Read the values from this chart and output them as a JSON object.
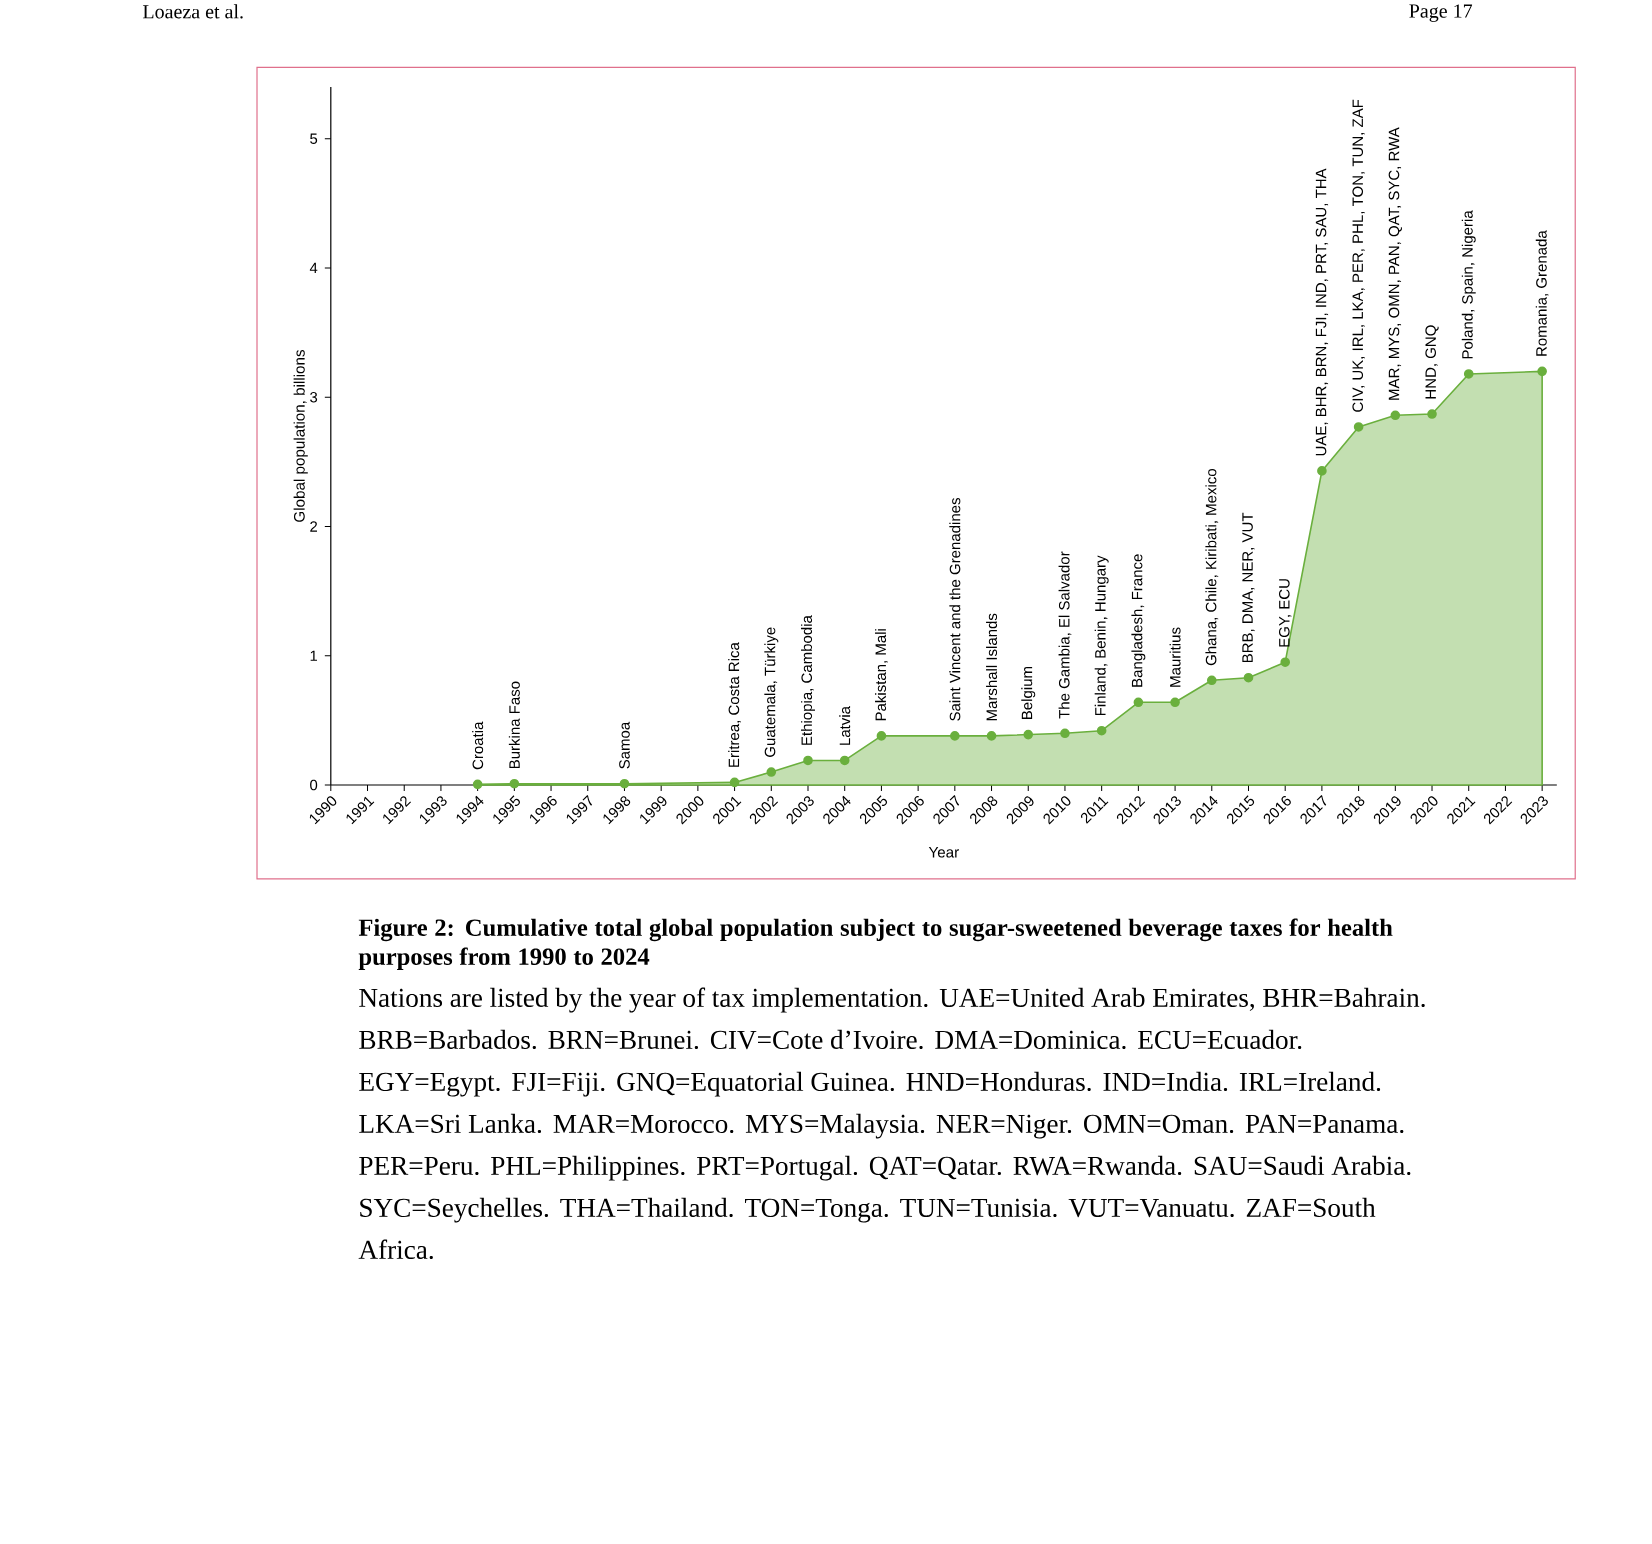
{
  "chart_data": {
    "type": "area",
    "title": "Figure 2: Cumulative total global population subject to sugar-sweetened beverage taxes for health purposes from 1990 to 2024",
    "xlabel": "Year",
    "ylabel": "Global population, billions",
    "x": [
      1994,
      1995,
      1998,
      2001,
      2002,
      2003,
      2004,
      2005,
      2007,
      2008,
      2009,
      2010,
      2011,
      2012,
      2013,
      2014,
      2015,
      2016,
      2017,
      2018,
      2019,
      2020,
      2021,
      2023
    ],
    "values": [
      0.005,
      0.01,
      0.01,
      0.02,
      0.1,
      0.19,
      0.19,
      0.38,
      0.38,
      0.38,
      0.39,
      0.4,
      0.42,
      0.64,
      0.64,
      0.81,
      0.83,
      0.95,
      2.43,
      2.77,
      2.86,
      2.87,
      3.18,
      3.2
    ],
    "color": "#6aaf3d",
    "marker": "circle",
    "grid": false,
    "xlim": [
      1990,
      2023.4
    ],
    "xticks": [
      1990,
      1991,
      1992,
      1993,
      1994,
      1995,
      1996,
      1997,
      1998,
      1999,
      2000,
      2001,
      2002,
      2003,
      2004,
      2005,
      2006,
      2007,
      2008,
      2009,
      2010,
      2011,
      2012,
      2013,
      2014,
      2015,
      2016,
      2017,
      2018,
      2019,
      2020,
      2021,
      2022,
      2023
    ],
    "ylim": [
      0,
      5.4
    ],
    "yticks": [
      0,
      1,
      2,
      3,
      4,
      5
    ],
    "annotations": [
      {
        "text": "Croatia",
        "x": 1994,
        "y": 0.005
      },
      {
        "text": "Burkina Faso",
        "x": 1995,
        "y": 0.01
      },
      {
        "text": "Samoa",
        "x": 1998,
        "y": 0.01
      },
      {
        "text": "Eritrea, Costa Rica",
        "x": 2001,
        "y": 0.02
      },
      {
        "text": "Guatemala, Türkiye",
        "x": 2002,
        "y": 0.1
      },
      {
        "text": "Ethiopia, Cambodia",
        "x": 2003,
        "y": 0.19
      },
      {
        "text": "Latvia",
        "x": 2004,
        "y": 0.19
      },
      {
        "text": "Pakistan, Mali",
        "x": 2005,
        "y": 0.38
      },
      {
        "text": "Saint Vincent and the Grenadines",
        "x": 2007,
        "y": 0.38
      },
      {
        "text": "Marshall Islands",
        "x": 2008,
        "y": 0.38
      },
      {
        "text": "Belgium",
        "x": 2009,
        "y": 0.39
      },
      {
        "text": "The Gambia, El Salvador",
        "x": 2010,
        "y": 0.4
      },
      {
        "text": "Finland, Benin, Hungary",
        "x": 2011,
        "y": 0.42
      },
      {
        "text": "Bangladesh, France",
        "x": 2012,
        "y": 0.64
      },
      {
        "text": "Mauritius",
        "x": 2013,
        "y": 0.64
      },
      {
        "text": "Ghana, Chile, Kiribati, Mexico",
        "x": 2014,
        "y": 0.81
      },
      {
        "text": "BRB, DMA, NER, VUT",
        "x": 2015,
        "y": 0.83
      },
      {
        "text": "EGY, ECU",
        "x": 2016,
        "y": 0.95
      },
      {
        "text": "UAE, BHR, BRN, FJI, IND, PRT, SAU, THA",
        "x": 2017,
        "y": 2.43
      },
      {
        "text": "CIV, UK, IRL, LKA, PER, PHL, TON, TUN, ZAF",
        "x": 2018,
        "y": 2.77
      },
      {
        "text": "MAR, MYS, OMN, PAN, QAT, SYC, RWA",
        "x": 2019,
        "y": 2.86
      },
      {
        "text": "HND, GNQ",
        "x": 2020,
        "y": 2.87
      },
      {
        "text": "Poland, Spain, Nigeria",
        "x": 2021,
        "y": 3.18
      },
      {
        "text": "Romania, Grenada",
        "x": 2023,
        "y": 3.2
      },
      "Loaeza et al.",
      "Page 17",
      "Nations are listed by the year of tax implementation. UAE=United Arab Emirates, BHR=Bahrain. BRB=Barbados. BRN=Brunei. CIV=Cote d’Ivoire. DMA=Dominica. ECU=Ecuador. EGY=Egypt. FJI=Fiji. GNQ=Equatorial Guinea. HND=Honduras. IND=India. IRL=Ireland. LKA=Sri Lanka. MAR=Morocco. MYS=Malaysia. NER=Niger. OMN=Oman. PAN=Panama. PER=Peru. PHL=Philippines. PRT=Portugal. QAT=Qatar. RWA=Rwanda. SAU=Saudi Arabia. SYC=Seychelles. THA=Thailand. TON=Tonga. TUN=Tunisia. VUT=Vanuatu. ZAF=South Africa."
    ]
  }
}
